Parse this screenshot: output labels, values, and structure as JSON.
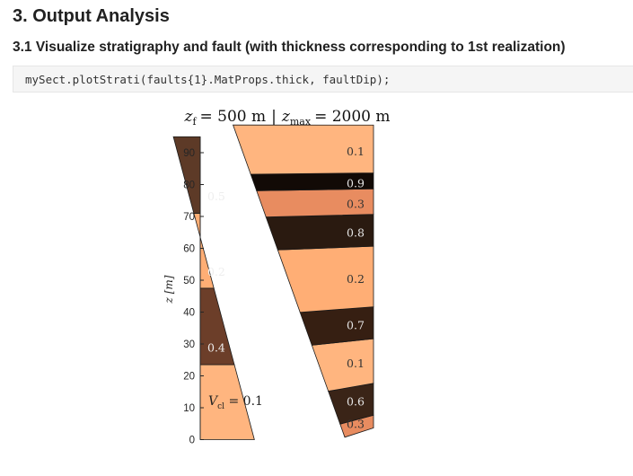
{
  "notebook": {
    "heading": "3. Output Analysis",
    "subheading": "3.1 Visualize stratigraphy and fault (with thickness corresponding to 1st realization)",
    "code": "mySect.plotStrati(faults{1}.MatProps.thick, faultDip);"
  },
  "chart_data": {
    "type": "stratigraphic-section",
    "title": "z_f = 500 m | z_max = 2000 m",
    "title_parts": {
      "left_sym": "z",
      "left_sub": "f",
      "left_val": "= 500 m",
      "sep": "|",
      "right_sym": "z",
      "right_sub": "max",
      "right_val": "= 2000 m"
    },
    "ylabel": "z [m]",
    "ylim": [
      0,
      95
    ],
    "yticks": [
      0,
      10,
      20,
      30,
      40,
      50,
      60,
      70,
      80,
      90
    ],
    "grid": false,
    "legend": "none",
    "footwall": {
      "annotation_prefix": "V",
      "annotation_sub": "cl",
      "annotation_suffix": " = 0.1",
      "layers": [
        {
          "bottom": 0,
          "top": 23.5,
          "vcl": 0.1,
          "label": "",
          "color": "#ffb57f"
        },
        {
          "bottom": 23.5,
          "top": 47.5,
          "vcl": 0.4,
          "label": "0.4",
          "color": "#6c3e29"
        },
        {
          "bottom": 47.5,
          "top": 71,
          "vcl": 0.2,
          "label": "0.2",
          "color": "#ffae75"
        },
        {
          "bottom": 71,
          "top": 95,
          "vcl": 0.5,
          "label": "0.5",
          "color": "#5d3a27"
        }
      ]
    },
    "hangingwall": {
      "layers": [
        {
          "bottom": 0,
          "top": 4,
          "vcl": 0.3,
          "label": "0.3",
          "color": "#e88c60"
        },
        {
          "bottom": 4,
          "top": 14,
          "vcl": 0.6,
          "label": "0.6",
          "color": "#3a2417"
        },
        {
          "bottom": 14,
          "top": 28,
          "vcl": 0.1,
          "label": "0.1",
          "color": "#ffb57f"
        },
        {
          "bottom": 28,
          "top": 38,
          "vcl": 0.7,
          "label": "0.7",
          "color": "#361f12"
        },
        {
          "bottom": 38,
          "top": 57,
          "vcl": 0.2,
          "label": "0.2",
          "color": "#ffae75"
        },
        {
          "bottom": 57,
          "top": 67,
          "vcl": 0.8,
          "label": "0.8",
          "color": "#2a1a10"
        },
        {
          "bottom": 67,
          "top": 75,
          "vcl": 0.3,
          "label": "0.3",
          "color": "#e88c60"
        },
        {
          "bottom": 75,
          "top": 80,
          "vcl": 0.9,
          "label": "0.9",
          "color": "#120a06"
        },
        {
          "bottom": 80,
          "top": 95,
          "vcl": 0.1,
          "label": "0.1",
          "color": "#ffb57f"
        }
      ]
    }
  }
}
